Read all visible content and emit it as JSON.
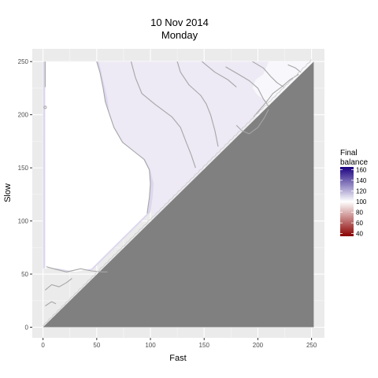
{
  "chart_data": {
    "type": "heatmap",
    "title": "10 Nov 2014",
    "subtitle": "Monday",
    "xlabel": "Fast",
    "ylabel": "Slow",
    "xlim": [
      -10,
      262
    ],
    "ylim": [
      -10,
      262
    ],
    "x_ticks": [
      0,
      50,
      100,
      150,
      200,
      250
    ],
    "y_ticks": [
      0,
      50,
      100,
      150,
      200,
      250
    ],
    "grid": true,
    "legend": {
      "title_line1": "Final",
      "title_line2": "balance",
      "placement": "right",
      "ticks": [
        160,
        140,
        120,
        100,
        80,
        60,
        40
      ],
      "min": 35,
      "max": 165,
      "low_color": "#8b0000",
      "mid_color": "#ffffff",
      "high_color": "#1a0080",
      "midpoint": 100
    },
    "regions": [
      {
        "name": "white-left",
        "value": 100,
        "color": "#ffffff"
      },
      {
        "name": "purple-band",
        "value": 110,
        "color": "#ddd7ee"
      },
      {
        "name": "light-band",
        "value": 105,
        "color": "#ede9f5"
      },
      {
        "name": "invalid-lower-triangle",
        "value": null,
        "color": "#808080"
      }
    ],
    "contour_color": "#a6a6a6",
    "panel_background": "#ebebeb"
  }
}
